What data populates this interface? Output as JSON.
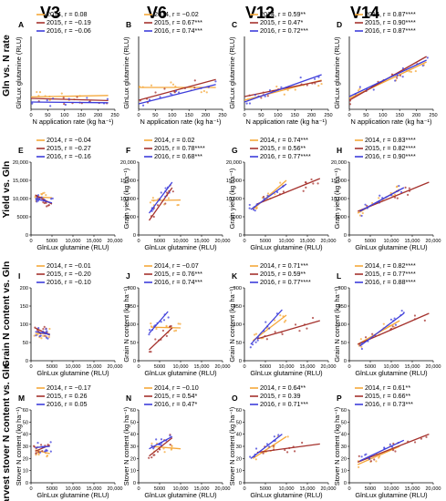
{
  "column_titles": [
    "V3",
    "V6",
    "V12",
    "V14"
  ],
  "row_titles": [
    "Gln vs. N rate",
    "Yield vs. Gln",
    "Grain N content vs. Gln",
    "Harvest stover N content vs. Gln"
  ],
  "colors": {
    "2014": "#f5a83a",
    "2015": "#a5322d",
    "2016": "#3d3ddb"
  },
  "chart_data": [
    {
      "panel": "A",
      "type": "scatter",
      "xlabel": "N application rate (kg ha⁻¹)",
      "ylabel": "GlnLux glutamine (RLU)",
      "xlim": [
        0,
        250
      ],
      "xticks": [
        "0",
        "50",
        "100",
        "150",
        "200",
        "250"
      ],
      "ylim": [
        0,
        20000
      ],
      "yticks": [],
      "series": [
        {
          "name": "2014",
          "label": "2014, r = 0.08",
          "x0": 0,
          "y0": 3400,
          "x1": 230,
          "y1": 3800
        },
        {
          "name": "2015",
          "label": "2015, r = −0.19",
          "x0": 0,
          "y0": 3000,
          "x1": 230,
          "y1": 2400
        },
        {
          "name": "2016",
          "label": "2016, r = −0.06",
          "x0": 0,
          "y0": 2000,
          "x1": 230,
          "y1": 1800
        }
      ]
    },
    {
      "panel": "B",
      "type": "scatter",
      "xlabel": "N application rate (kg ha⁻¹)",
      "ylabel": "GlnLux glutamine (RLU)",
      "xlim": [
        0,
        250
      ],
      "xticks": [
        "0",
        "50",
        "100",
        "150",
        "200",
        "250"
      ],
      "ylim": [
        0,
        20000
      ],
      "yticks": [],
      "series": [
        {
          "name": "2014",
          "label": "2014, r = −0.02",
          "x0": 0,
          "y0": 6000,
          "x1": 230,
          "y1": 6000
        },
        {
          "name": "2015",
          "label": "2015, r = 0.67***",
          "x0": 0,
          "y0": 2500,
          "x1": 230,
          "y1": 8200
        },
        {
          "name": "2016",
          "label": "2016, r = 0.74***",
          "x0": 0,
          "y0": 1500,
          "x1": 230,
          "y1": 6800
        }
      ]
    },
    {
      "panel": "C",
      "type": "scatter",
      "xlabel": "N application rate (kg ha⁻¹)",
      "ylabel": "GlnLux glutamine (RLU)",
      "xlim": [
        0,
        250
      ],
      "xticks": [
        "0",
        "50",
        "100",
        "150",
        "200",
        "250"
      ],
      "ylim": [
        0,
        20000
      ],
      "yticks": [],
      "series": [
        {
          "name": "2014",
          "label": "2014, r = 0.59**",
          "x0": 0,
          "y0": 2500,
          "x1": 230,
          "y1": 8000
        },
        {
          "name": "2015",
          "label": "2015, r = 0.47*",
          "x0": 0,
          "y0": 3500,
          "x1": 230,
          "y1": 7800
        },
        {
          "name": "2016",
          "label": "2016, r = 0.72***",
          "x0": 0,
          "y0": 2000,
          "x1": 230,
          "y1": 9500
        }
      ]
    },
    {
      "panel": "D",
      "type": "scatter",
      "xlabel": "N application rate (kg ha⁻¹)",
      "ylabel": "GlnLux glutamine (RLU)",
      "xlim": [
        0,
        250
      ],
      "xticks": [
        "0",
        "50",
        "100",
        "150",
        "200",
        "250"
      ],
      "ylim": [
        0,
        20000
      ],
      "yticks": [],
      "series": [
        {
          "name": "2014",
          "label": "2014, r = 0.87****",
          "x0": 0,
          "y0": 3000,
          "x1": 230,
          "y1": 13000
        },
        {
          "name": "2015",
          "label": "2015, r = 0.90****",
          "x0": 0,
          "y0": 2500,
          "x1": 230,
          "y1": 14500
        },
        {
          "name": "2016",
          "label": "2016, r = 0.87****",
          "x0": 0,
          "y0": 3500,
          "x1": 230,
          "y1": 13500
        }
      ]
    },
    {
      "panel": "E",
      "type": "scatter",
      "xlabel": "GlnLux glutamine (RLU)",
      "ylabel": "",
      "xlim": [
        0,
        20000
      ],
      "xticks": [
        "0",
        "5000",
        "10,000",
        "15,000",
        "20,000"
      ],
      "ylim": [
        0,
        20000
      ],
      "yticks": [
        "0",
        "5000",
        "10,000",
        "15,000",
        "20,000"
      ],
      "series": [
        {
          "name": "2014",
          "label": "2014, r = −0.04",
          "x0": 1000,
          "y0": 10500,
          "x1": 5000,
          "y1": 10200
        },
        {
          "name": "2015",
          "label": "2015, r = −0.27",
          "x0": 1000,
          "y0": 11000,
          "x1": 5000,
          "y1": 8500
        },
        {
          "name": "2016",
          "label": "2016, r = −0.16",
          "x0": 1000,
          "y0": 10000,
          "x1": 5000,
          "y1": 8800
        }
      ]
    },
    {
      "panel": "F",
      "type": "scatter",
      "xlabel": "GlnLux glutamine (RLU)",
      "ylabel": "Grain yield (kg ha⁻¹)",
      "xlim": [
        0,
        20000
      ],
      "xticks": [
        "0",
        "5000",
        "10,000",
        "15,000",
        "20,000"
      ],
      "ylim": [
        0,
        20000
      ],
      "yticks": [
        "0",
        "5000",
        "10,000",
        "15,000",
        "20,000"
      ],
      "series": [
        {
          "name": "2014",
          "label": "2014, r = 0.02",
          "x0": 3000,
          "y0": 9500,
          "x1": 10000,
          "y1": 9600
        },
        {
          "name": "2015",
          "label": "2015, r = 0.78****",
          "x0": 2500,
          "y0": 4000,
          "x1": 8000,
          "y1": 13000
        },
        {
          "name": "2016",
          "label": "2016, r = 0.68***",
          "x0": 2500,
          "y0": 6000,
          "x1": 8000,
          "y1": 14500
        }
      ]
    },
    {
      "panel": "G",
      "type": "scatter",
      "xlabel": "GlnLux glutamine (RLU)",
      "ylabel": "Grain yield (kg ha⁻¹)",
      "xlim": [
        0,
        20000
      ],
      "xticks": [
        "0",
        "5000",
        "10,000",
        "15,000",
        "20,000"
      ],
      "ylim": [
        0,
        20000
      ],
      "yticks": [
        "0",
        "5000",
        "10,000",
        "15,000",
        "20,000"
      ],
      "series": [
        {
          "name": "2014",
          "label": "2014, r = 0.74***",
          "x0": 2000,
          "y0": 7000,
          "x1": 10000,
          "y1": 15000
        },
        {
          "name": "2015",
          "label": "2015, r = 0.56**",
          "x0": 3000,
          "y0": 8500,
          "x1": 18000,
          "y1": 15500
        },
        {
          "name": "2016",
          "label": "2016, r = 0.77****",
          "x0": 1500,
          "y0": 7000,
          "x1": 10000,
          "y1": 14000
        }
      ]
    },
    {
      "panel": "H",
      "type": "scatter",
      "xlabel": "GlnLux glutamine (RLU)",
      "ylabel": "Grain yield (kg ha⁻¹)",
      "xlim": [
        0,
        20000
      ],
      "xticks": [
        "0",
        "5000",
        "10,000",
        "15,000",
        "20,000"
      ],
      "ylim": [
        0,
        20000
      ],
      "yticks": [
        "0",
        "5000",
        "10,000",
        "15,000",
        "20,000"
      ],
      "series": [
        {
          "name": "2014",
          "label": "2014, r = 0.83****",
          "x0": 2000,
          "y0": 6000,
          "x1": 12000,
          "y1": 12500
        },
        {
          "name": "2015",
          "label": "2015, r = 0.82****",
          "x0": 2000,
          "y0": 6500,
          "x1": 19000,
          "y1": 14500
        },
        {
          "name": "2016",
          "label": "2016, r = 0.90****",
          "x0": 2500,
          "y0": 6500,
          "x1": 13000,
          "y1": 13000
        }
      ]
    },
    {
      "panel": "I",
      "type": "scatter",
      "xlabel": "GlnLux glutamine (RLU)",
      "ylabel": "",
      "xlim": [
        0,
        20000
      ],
      "xticks": [
        "0",
        "5000",
        "10,000",
        "15,000",
        "20,000"
      ],
      "ylim": [
        0,
        200
      ],
      "yticks": [
        "0",
        "50",
        "100",
        "150",
        "200"
      ],
      "series": [
        {
          "name": "2014",
          "label": "2014, r = −0.01",
          "x0": 1000,
          "y0": 75,
          "x1": 4500,
          "y1": 74
        },
        {
          "name": "2015",
          "label": "2015, r = −0.20",
          "x0": 1000,
          "y0": 90,
          "x1": 4500,
          "y1": 70
        },
        {
          "name": "2016",
          "label": "2016, r = −0.10",
          "x0": 1000,
          "y0": 80,
          "x1": 4500,
          "y1": 72
        }
      ]
    },
    {
      "panel": "J",
      "type": "scatter",
      "xlabel": "GlnLux glutamine (RLU)",
      "ylabel": "Grain N content (kg ha⁻¹)",
      "xlim": [
        0,
        20000
      ],
      "xticks": [
        "0",
        "5000",
        "10,000",
        "15,000",
        "20,000"
      ],
      "ylim": [
        0,
        200
      ],
      "yticks": [
        "0",
        "50",
        "100",
        "150",
        "200"
      ],
      "series": [
        {
          "name": "2014",
          "label": "2014, r = −0.07",
          "x0": 3000,
          "y0": 92,
          "x1": 10000,
          "y1": 90
        },
        {
          "name": "2015",
          "label": "2015, r = 0.76***",
          "x0": 2500,
          "y0": 30,
          "x1": 8000,
          "y1": 90
        },
        {
          "name": "2016",
          "label": "2016, r = 0.74***",
          "x0": 2500,
          "y0": 75,
          "x1": 7000,
          "y1": 135
        }
      ]
    },
    {
      "panel": "K",
      "type": "scatter",
      "xlabel": "GlnLux glutamine (RLU)",
      "ylabel": "Grain N content (kg ha⁻¹)",
      "xlim": [
        0,
        20000
      ],
      "xticks": [
        "0",
        "5000",
        "10,000",
        "15,000",
        "20,000"
      ],
      "ylim": [
        0,
        200
      ],
      "yticks": [
        "0",
        "50",
        "100",
        "150",
        "200"
      ],
      "series": [
        {
          "name": "2014",
          "label": "2014, r = 0.71***",
          "x0": 2000,
          "y0": 55,
          "x1": 10000,
          "y1": 125
        },
        {
          "name": "2015",
          "label": "2015, r = 0.59**",
          "x0": 3000,
          "y0": 60,
          "x1": 18000,
          "y1": 110
        },
        {
          "name": "2016",
          "label": "2016, r = 0.77****",
          "x0": 1500,
          "y0": 45,
          "x1": 9000,
          "y1": 140
        }
      ]
    },
    {
      "panel": "L",
      "type": "scatter",
      "xlabel": "GlnLux glutamine (RLU)",
      "ylabel": "Grain N content (kg ha⁻¹)",
      "xlim": [
        0,
        20000
      ],
      "xticks": [
        "0",
        "5000",
        "10,000",
        "15,000",
        "20,000"
      ],
      "ylim": [
        0,
        200
      ],
      "yticks": [
        "0",
        "50",
        "100",
        "150",
        "200"
      ],
      "series": [
        {
          "name": "2014",
          "label": "2014, r = 0.82****",
          "x0": 2000,
          "y0": 45,
          "x1": 12000,
          "y1": 110
        },
        {
          "name": "2015",
          "label": "2015, r = 0.77****",
          "x0": 2000,
          "y0": 45,
          "x1": 19000,
          "y1": 130
        },
        {
          "name": "2016",
          "label": "2016, r = 0.88****",
          "x0": 2500,
          "y0": 40,
          "x1": 13000,
          "y1": 130
        }
      ]
    },
    {
      "panel": "M",
      "type": "scatter",
      "xlabel": "GlnLux glutamine (RLU)",
      "ylabel": "Stover N content (kg ha⁻¹)",
      "xlim": [
        0,
        20000
      ],
      "xticks": [
        "0",
        "5000",
        "10,000",
        "15,000",
        "20,000"
      ],
      "ylim": [
        0,
        60
      ],
      "yticks": [
        "0",
        "10",
        "20",
        "30",
        "40",
        "50",
        "60"
      ],
      "series": [
        {
          "name": "2014",
          "label": "2014, r = −0.17",
          "x0": 1000,
          "y0": 27,
          "x1": 4500,
          "y1": 24
        },
        {
          "name": "2015",
          "label": "2015, r = 0.26",
          "x0": 1000,
          "y0": 26,
          "x1": 4500,
          "y1": 31
        },
        {
          "name": "2016",
          "label": "2016, r = 0.05",
          "x0": 1000,
          "y0": 29,
          "x1": 4500,
          "y1": 30
        }
      ]
    },
    {
      "panel": "N",
      "type": "scatter",
      "xlabel": "GlnLux glutamine (RLU)",
      "ylabel": "Stover N content (kg ha⁻¹)",
      "xlim": [
        0,
        20000
      ],
      "xticks": [
        "0",
        "5000",
        "10,000",
        "15,000",
        "20,000"
      ],
      "ylim": [
        0,
        60
      ],
      "yticks": [
        "0",
        "10",
        "20",
        "30",
        "40",
        "50",
        "60"
      ],
      "series": [
        {
          "name": "2014",
          "label": "2014, r = −0.10",
          "x0": 3000,
          "y0": 30,
          "x1": 10000,
          "y1": 28
        },
        {
          "name": "2015",
          "label": "2015, r = 0.54*",
          "x0": 2500,
          "y0": 22,
          "x1": 8000,
          "y1": 37
        },
        {
          "name": "2016",
          "label": "2016, r = 0.47*",
          "x0": 2500,
          "y0": 28,
          "x1": 8000,
          "y1": 38
        }
      ]
    },
    {
      "panel": "O",
      "type": "scatter",
      "xlabel": "GlnLux glutamine (RLU)",
      "ylabel": "Stover N content (kg ha⁻¹)",
      "xlim": [
        0,
        20000
      ],
      "xticks": [
        "0",
        "5000",
        "10,000",
        "15,000",
        "20,000"
      ],
      "ylim": [
        0,
        60
      ],
      "yticks": [
        "0",
        "10",
        "20",
        "30",
        "40",
        "50",
        "60"
      ],
      "series": [
        {
          "name": "2014",
          "label": "2014, r = 0.64**",
          "x0": 2000,
          "y0": 20,
          "x1": 10000,
          "y1": 38
        },
        {
          "name": "2015",
          "label": "2015, r = 0.39",
          "x0": 3000,
          "y0": 25,
          "x1": 18000,
          "y1": 32
        },
        {
          "name": "2016",
          "label": "2016, r = 0.71***",
          "x0": 1500,
          "y0": 20,
          "x1": 9000,
          "y1": 40
        }
      ]
    },
    {
      "panel": "P",
      "type": "scatter",
      "xlabel": "GlnLux glutamine (RLU)",
      "ylabel": "Stover N content (kg ha⁻¹)",
      "xlim": [
        0,
        20000
      ],
      "xticks": [
        "0",
        "5000",
        "10,000",
        "15,000",
        "20,000"
      ],
      "ylim": [
        0,
        60
      ],
      "yticks": [
        "0",
        "10",
        "20",
        "30",
        "40",
        "50",
        "60"
      ],
      "series": [
        {
          "name": "2014",
          "label": "2014, r = 0.61**",
          "x0": 2000,
          "y0": 15,
          "x1": 12000,
          "y1": 30
        },
        {
          "name": "2015",
          "label": "2015, r = 0.66**",
          "x0": 2000,
          "y0": 17,
          "x1": 19000,
          "y1": 40
        },
        {
          "name": "2016",
          "label": "2016, r = 0.73***",
          "x0": 2500,
          "y0": 18,
          "x1": 13000,
          "y1": 35
        }
      ]
    }
  ]
}
